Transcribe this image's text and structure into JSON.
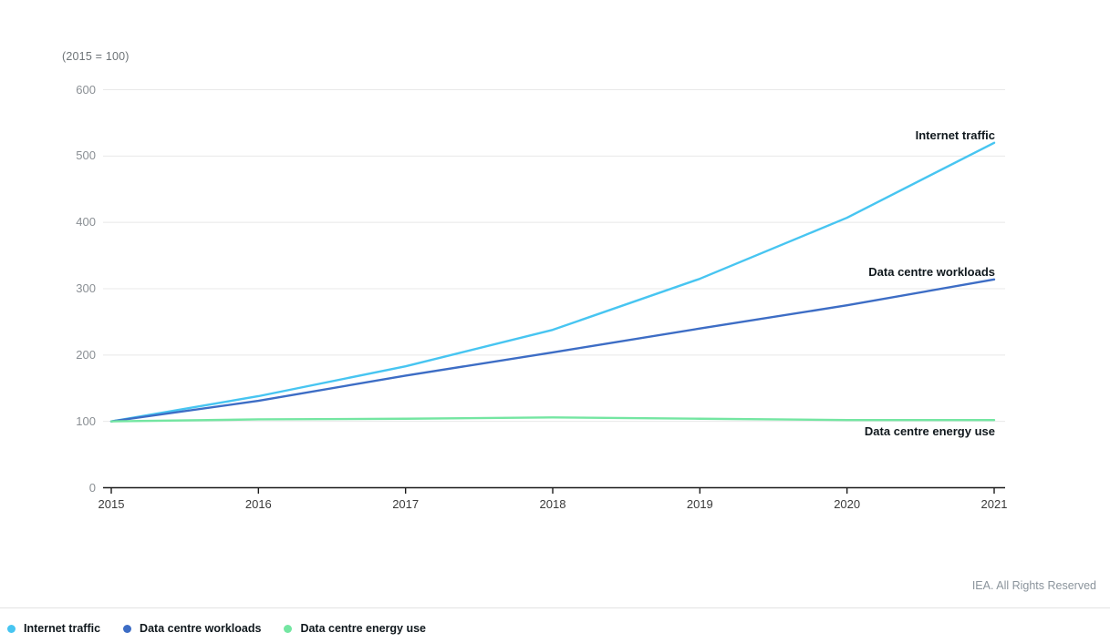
{
  "chart": {
    "index_note": "(2015 = 100)",
    "footer_credit": "IEA. All Rights Reserved"
  },
  "chart_data": {
    "type": "line",
    "title": "",
    "xlabel": "",
    "ylabel": "(2015 = 100)",
    "x": [
      "2015",
      "2016",
      "2017",
      "2018",
      "2019",
      "2020",
      "2021"
    ],
    "series": [
      {
        "name": "Internet traffic",
        "color": "#47c5f1",
        "values": [
          100,
          138,
          183,
          238,
          315,
          407,
          520
        ],
        "end_label_position": "above"
      },
      {
        "name": "Data centre workloads",
        "color": "#3d6dc5",
        "values": [
          100,
          131,
          169,
          204,
          240,
          275,
          314
        ],
        "end_label_position": "above"
      },
      {
        "name": "Data centre energy use",
        "color": "#74e6a2",
        "values": [
          100,
          103,
          104,
          106,
          104,
          102,
          102
        ],
        "end_label_position": "below"
      }
    ],
    "ylim": [
      0,
      600
    ],
    "ytick_step": 100,
    "grid": true,
    "legend_position": "bottom-left"
  },
  "colors": {
    "gridline": "#e8e8e8",
    "axis_line": "#1c1c1c",
    "y_tick_text": "#8a8f94",
    "x_tick_text": "#3a3a3a",
    "series_label_text": "#10181d",
    "footer_text": "#8b949c",
    "divider": "#e3e3e3"
  }
}
